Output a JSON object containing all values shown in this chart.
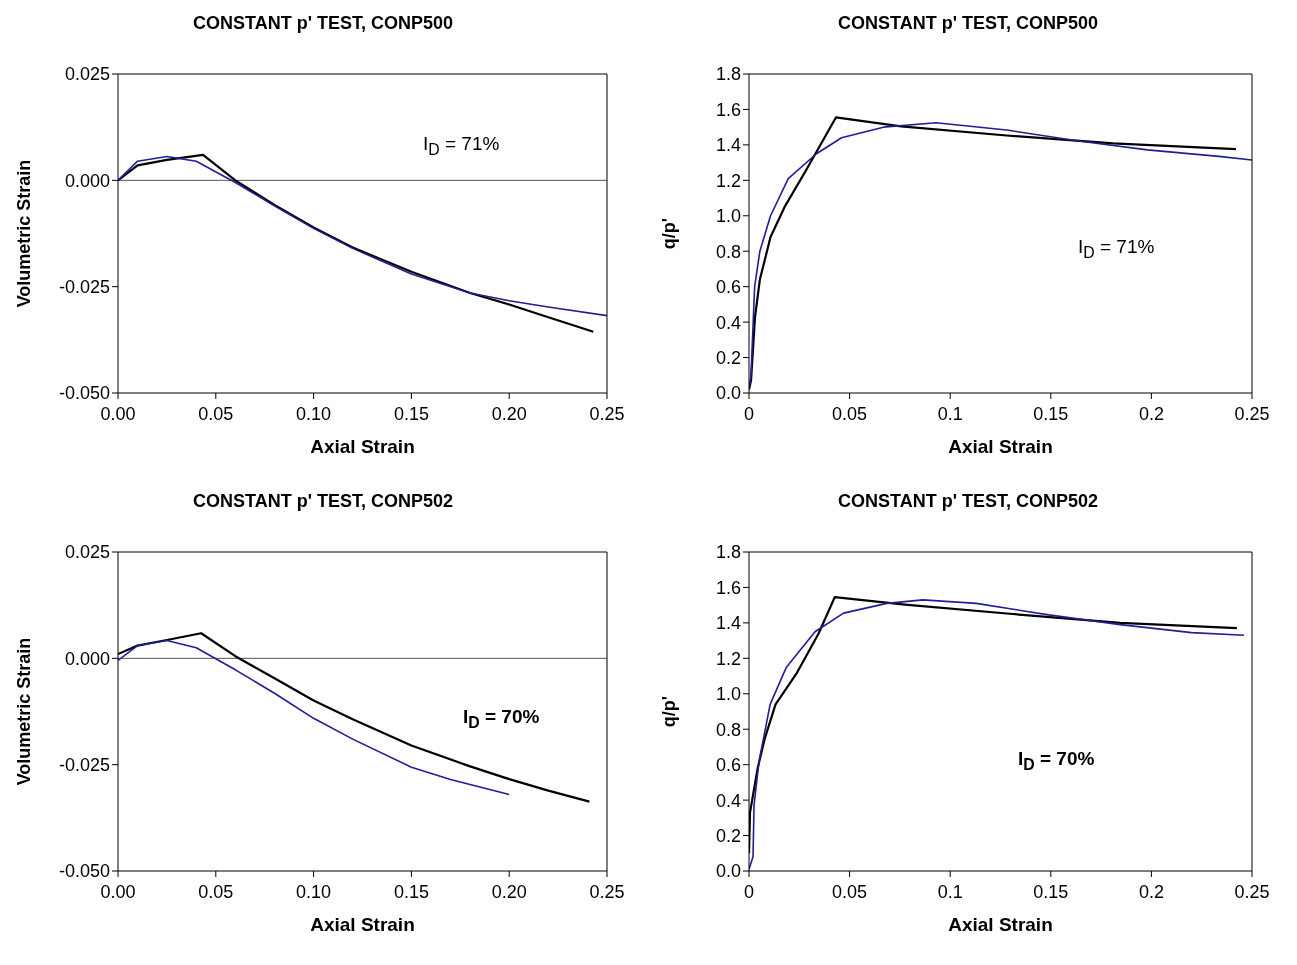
{
  "chart_data": [
    {
      "type": "line",
      "title": "CONSTANT p' TEST, CONP500",
      "xlabel": "Axial Strain",
      "ylabel": "Volumetric Strain",
      "marker": "none",
      "line_style": "solid",
      "xlim": [
        0,
        0.25
      ],
      "ylim": [
        -0.05,
        0.025
      ],
      "xticks": [
        {
          "value": 0,
          "label": "0.00"
        },
        0.05,
        {
          "value": 0.1,
          "label": "0.10"
        },
        0.15,
        {
          "value": 0.2,
          "label": "0.20"
        },
        0.25
      ],
      "yticks": [
        {
          "value": -0.05,
          "label": "-0.050"
        },
        -0.025,
        {
          "value": 0,
          "label": "0.000"
        },
        0.025
      ],
      "ref_lines": [
        {
          "axis": "y",
          "value": 0
        }
      ],
      "annotations": [
        "I$_{D}$ = 71%"
      ],
      "series": [
        {
          "color": "#000000",
          "x": [
            0,
            0.01,
            0.025,
            0.0435,
            0.06,
            0.08,
            0.1,
            0.12,
            0.15,
            0.18,
            0.2,
            0.22,
            0.243
          ],
          "values": [
            0,
            0.0035,
            0.0048,
            0.006,
            0,
            -0.0058,
            -0.0111,
            -0.0158,
            -0.0215,
            -0.0265,
            -0.0292,
            -0.0322,
            -0.0356
          ]
        },
        {
          "color": "#1f1f96",
          "x": [
            0,
            0.01,
            0.025,
            0.04,
            0.06,
            0.08,
            0.1,
            0.12,
            0.15,
            0.18,
            0.2,
            0.22,
            0.25
          ],
          "values": [
            0,
            0.0045,
            0.0056,
            0.0045,
            -0.0005,
            -0.006,
            -0.0113,
            -0.016,
            -0.022,
            -0.0265,
            -0.0283,
            -0.0298,
            -0.0318
          ]
        }
      ]
    },
    {
      "type": "line",
      "title": "CONSTANT p' TEST, CONP500",
      "xlabel": "Axial Strain",
      "ylabel": "q/p'",
      "marker": "none",
      "line_style": "solid",
      "xlim": [
        0,
        0.25
      ],
      "ylim": [
        0,
        1.8
      ],
      "xticks": [
        0,
        0.05,
        0.1,
        0.15,
        0.2,
        0.25
      ],
      "yticks": [
        {
          "value": 0,
          "label": "0.0"
        },
        0.2,
        0.4,
        0.6,
        0.8,
        {
          "value": 1,
          "label": "1.0"
        },
        1.2,
        1.4,
        1.6,
        1.8
      ],
      "annotations": [
        "I$_{D}$ = 71%"
      ],
      "series": [
        {
          "color": "#000000",
          "x": [
            0,
            0.001,
            0.003,
            0.0054,
            0.0107,
            0.0177,
            0.028,
            0.0432,
            0.0756,
            0.128,
            0.181,
            0.242
          ],
          "values": [
            0.02,
            0.07,
            0.43,
            0.64,
            0.88,
            1.05,
            1.25,
            1.555,
            1.504,
            1.453,
            1.408,
            1.376
          ]
        },
        {
          "color": "#1f1f96",
          "x": [
            0,
            0.001,
            0.0028,
            0.0054,
            0.0107,
            0.0195,
            0.0335,
            0.046,
            0.0668,
            0.093,
            0.128,
            0.163,
            0.198,
            0.2335,
            0.25
          ],
          "values": [
            0.02,
            0.1,
            0.6,
            0.8,
            1.0,
            1.21,
            1.35,
            1.44,
            1.5,
            1.525,
            1.484,
            1.423,
            1.372,
            1.335,
            1.315
          ]
        }
      ]
    },
    {
      "type": "line",
      "title": "CONSTANT p' TEST, CONP502",
      "xlabel": "Axial Strain",
      "ylabel": "Volumetric Strain",
      "marker": "none",
      "line_style": "solid",
      "xlim": [
        0,
        0.25
      ],
      "ylim": [
        -0.05,
        0.025
      ],
      "xticks": [
        {
          "value": 0,
          "label": "0.00"
        },
        0.05,
        {
          "value": 0.1,
          "label": "0.10"
        },
        0.15,
        {
          "value": 0.2,
          "label": "0.20"
        },
        0.25
      ],
      "yticks": [
        {
          "value": -0.05,
          "label": "-0.050"
        },
        -0.025,
        {
          "value": 0,
          "label": "0.000"
        },
        0.025
      ],
      "ref_lines": [
        {
          "axis": "y",
          "value": 0
        }
      ],
      "annotations": [
        "I$_{D}$ = 70%"
      ],
      "series": [
        {
          "color": "#000000",
          "x": [
            0,
            0.01,
            0.025,
            0.0425,
            0.06,
            0.08,
            0.1,
            0.12,
            0.15,
            0.18,
            0.2,
            0.22,
            0.241
          ],
          "values": [
            0.001,
            0.003,
            0.0043,
            0.0059,
            0.0005,
            -0.0047,
            -0.0099,
            -0.0143,
            -0.0205,
            -0.0254,
            -0.0284,
            -0.0311,
            -0.0337
          ]
        },
        {
          "color": "#1f1f96",
          "x": [
            0,
            0.01,
            0.025,
            0.04,
            0.06,
            0.08,
            0.1,
            0.12,
            0.15,
            0.17,
            0.2
          ],
          "values": [
            -0.0005,
            0.003,
            0.0042,
            0.0025,
            -0.0027,
            -0.0082,
            -0.0141,
            -0.019,
            -0.0256,
            -0.0285,
            -0.032
          ]
        }
      ]
    },
    {
      "type": "line",
      "title": "CONSTANT p' TEST, CONP502",
      "xlabel": "Axial Strain",
      "ylabel": "q/p'",
      "marker": "none",
      "line_style": "solid",
      "xlim": [
        0,
        0.25
      ],
      "ylim": [
        0,
        1.8
      ],
      "xticks": [
        0,
        0.05,
        0.1,
        0.15,
        0.2,
        0.25
      ],
      "yticks": [
        {
          "value": 0,
          "label": "0.0"
        },
        0.2,
        0.4,
        0.6,
        0.8,
        {
          "value": 1,
          "label": "1.0"
        },
        1.2,
        1.4,
        1.6,
        1.8
      ],
      "annotations": [
        "I$_{D}$ = 70%"
      ],
      "series": [
        {
          "color": "#000000",
          "x": [
            0,
            0.0005,
            0.0043,
            0.0079,
            0.0132,
            0.0239,
            0.0346,
            0.0426,
            0.0775,
            0.131,
            0.1845,
            0.2425
          ],
          "values": [
            0.1,
            0.33,
            0.58,
            0.75,
            0.94,
            1.12,
            1.34,
            1.545,
            1.503,
            1.45,
            1.4,
            1.37
          ]
        },
        {
          "color": "#1f1f96",
          "x": [
            0,
            0.002,
            0.0025,
            0.005,
            0.0105,
            0.0186,
            0.0328,
            0.047,
            0.0685,
            0.0864,
            0.113,
            0.149,
            0.1845,
            0.22,
            0.246
          ],
          "values": [
            0.01,
            0.08,
            0.37,
            0.62,
            0.94,
            1.15,
            1.35,
            1.455,
            1.51,
            1.53,
            1.51,
            1.445,
            1.39,
            1.345,
            1.33
          ]
        }
      ]
    }
  ]
}
